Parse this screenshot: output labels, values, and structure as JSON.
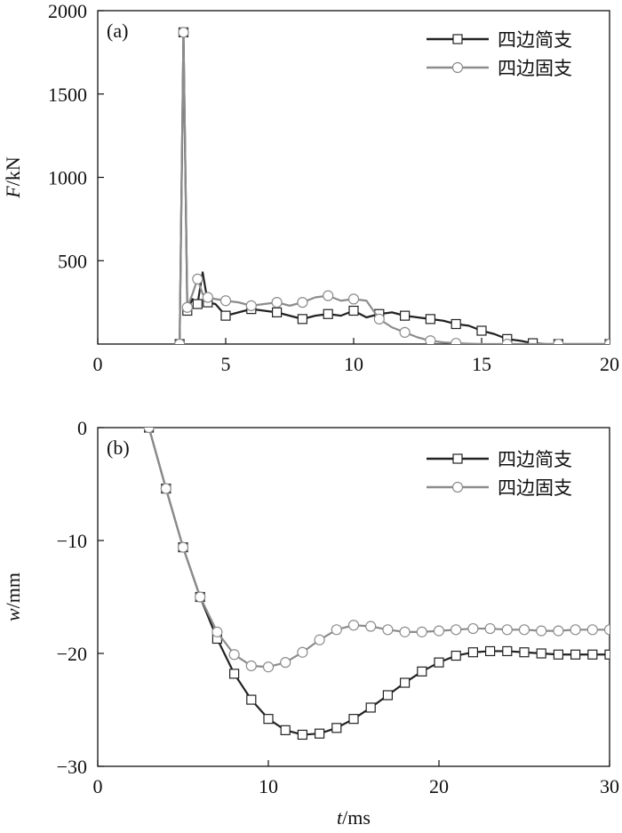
{
  "chart_data": [
    {
      "type": "line",
      "panel_label": "(a)",
      "ylabel_var": "F",
      "ylabel_unit": "/kN",
      "xlabel": "",
      "xlim": [
        0,
        20
      ],
      "ylim": [
        0,
        2000
      ],
      "xticks": [
        0,
        5,
        10,
        15,
        20
      ],
      "xtick_labels": [
        "0",
        "5",
        "10",
        "15",
        "20"
      ],
      "yticks": [
        500,
        1000,
        1500,
        2000
      ],
      "ytick_labels": [
        "500",
        "1000",
        "1500",
        "2000"
      ],
      "legend_position": "top-right",
      "series": [
        {
          "name": "四边简支",
          "color": "#222222",
          "marker": "square",
          "x": [
            3.2,
            3.35,
            3.5,
            3.7,
            3.9,
            4.1,
            4.3,
            4.6,
            5,
            5.5,
            6,
            6.5,
            7,
            7.5,
            8,
            8.5,
            9,
            9.5,
            10,
            10.5,
            11,
            11.5,
            12,
            12.5,
            13,
            13.5,
            14,
            14.5,
            15,
            15.5,
            16,
            16.5,
            17,
            17.5,
            18,
            19,
            20
          ],
          "y": [
            0,
            1870,
            200,
            270,
            240,
            430,
            250,
            240,
            170,
            190,
            210,
            200,
            190,
            170,
            150,
            170,
            180,
            170,
            200,
            160,
            180,
            190,
            170,
            160,
            150,
            140,
            120,
            110,
            80,
            60,
            30,
            20,
            5,
            0,
            0,
            0,
            0
          ]
        },
        {
          "name": "四边固支",
          "color": "#8c8c8c",
          "marker": "circle",
          "x": [
            3.2,
            3.35,
            3.5,
            3.7,
            3.9,
            4.1,
            4.3,
            4.6,
            5,
            5.5,
            6,
            6.5,
            7,
            7.5,
            8,
            8.5,
            9,
            9.5,
            10,
            10.5,
            11,
            11.5,
            12,
            12.5,
            13,
            13.5,
            14,
            15,
            16,
            17,
            18,
            19,
            20
          ],
          "y": [
            0,
            1870,
            220,
            300,
            390,
            300,
            280,
            270,
            260,
            250,
            230,
            240,
            250,
            230,
            250,
            280,
            290,
            260,
            270,
            260,
            150,
            100,
            70,
            40,
            20,
            10,
            5,
            0,
            0,
            0,
            0,
            0,
            0
          ]
        }
      ]
    },
    {
      "type": "line",
      "panel_label": "(b)",
      "ylabel_var": "w",
      "ylabel_unit": "/mm",
      "xlabel_var": "t",
      "xlabel_unit": "/ms",
      "xlim": [
        0,
        30
      ],
      "ylim": [
        -30,
        0
      ],
      "xticks": [
        0,
        10,
        20,
        30
      ],
      "xtick_labels": [
        "0",
        "10",
        "20",
        "30"
      ],
      "yticks": [
        0,
        -10,
        -20,
        -30
      ],
      "ytick_labels": [
        "0",
        "−10",
        "−20",
        "−30"
      ],
      "legend_position": "top-right",
      "series": [
        {
          "name": "四边简支",
          "color": "#222222",
          "marker": "square",
          "x": [
            3,
            4,
            5,
            6,
            7,
            8,
            9,
            10,
            11,
            12,
            13,
            14,
            15,
            16,
            17,
            18,
            19,
            20,
            21,
            22,
            23,
            24,
            25,
            26,
            27,
            28,
            29,
            30
          ],
          "y": [
            0,
            -5.4,
            -10.6,
            -15,
            -18.7,
            -21.8,
            -24.1,
            -25.8,
            -26.8,
            -27.2,
            -27.1,
            -26.6,
            -25.8,
            -24.8,
            -23.7,
            -22.6,
            -21.6,
            -20.8,
            -20.2,
            -19.9,
            -19.8,
            -19.8,
            -19.9,
            -20,
            -20.1,
            -20.1,
            -20.1,
            -20.1
          ]
        },
        {
          "name": "四边固支",
          "color": "#8c8c8c",
          "marker": "circle",
          "x": [
            3,
            4,
            5,
            6,
            7,
            8,
            9,
            10,
            11,
            12,
            13,
            14,
            15,
            16,
            17,
            18,
            19,
            20,
            21,
            22,
            23,
            24,
            25,
            26,
            27,
            28,
            29,
            30
          ],
          "y": [
            0,
            -5.4,
            -10.6,
            -15,
            -18.1,
            -20.1,
            -21.1,
            -21.2,
            -20.8,
            -19.9,
            -18.8,
            -17.9,
            -17.5,
            -17.6,
            -17.9,
            -18.1,
            -18.1,
            -18,
            -17.9,
            -17.8,
            -17.8,
            -17.9,
            -17.9,
            -18,
            -18,
            -17.9,
            -17.9,
            -17.9
          ]
        }
      ]
    }
  ]
}
